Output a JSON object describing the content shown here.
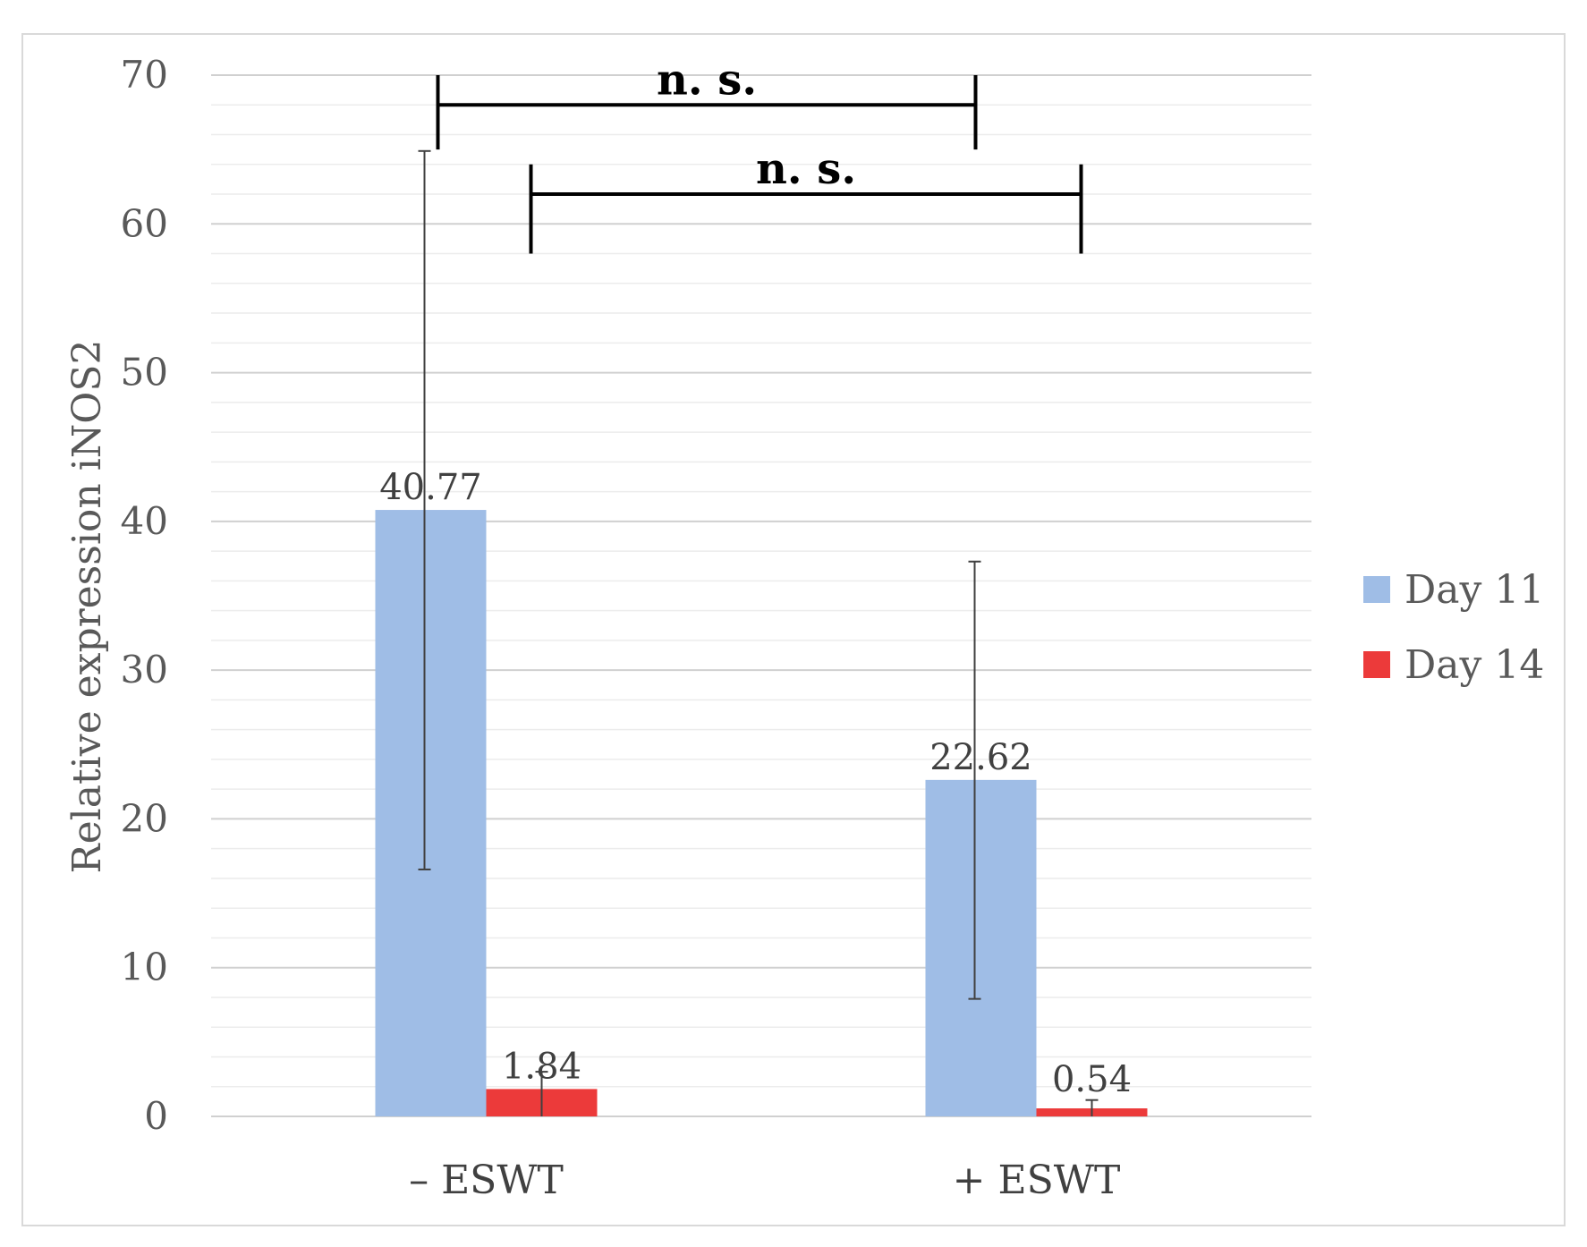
{
  "chart_data": {
    "type": "bar",
    "categories": [
      "– ESWT",
      "+ ESWT"
    ],
    "series": [
      {
        "name": "Day 11",
        "color": "#9fbde6",
        "values": [
          40.77,
          22.62
        ],
        "labels": [
          "40.77",
          "22.62"
        ],
        "error_low": [
          16.6,
          7.9
        ],
        "error_high": [
          64.9,
          37.3
        ]
      },
      {
        "name": "Day 14",
        "color": "#ec3a3a",
        "values": [
          1.84,
          0.54
        ],
        "labels": [
          "1.84",
          "0.54"
        ],
        "error_low": [
          0,
          0
        ],
        "error_high": [
          3.0,
          1.1
        ]
      }
    ],
    "title": "",
    "xlabel": "",
    "ylabel": "Relative expression iNOS2",
    "ylim": [
      0,
      70
    ],
    "yticks": [
      0,
      10,
      20,
      30,
      40,
      50,
      60,
      70
    ],
    "grid": true,
    "legend": "right",
    "significance": [
      {
        "label": "n. s.",
        "from": "– ESWT Day 11",
        "to": "+ ESWT Day 11"
      },
      {
        "label": "n. s.",
        "from": "– ESWT Day 14",
        "to": "+ ESWT Day 14"
      }
    ]
  }
}
